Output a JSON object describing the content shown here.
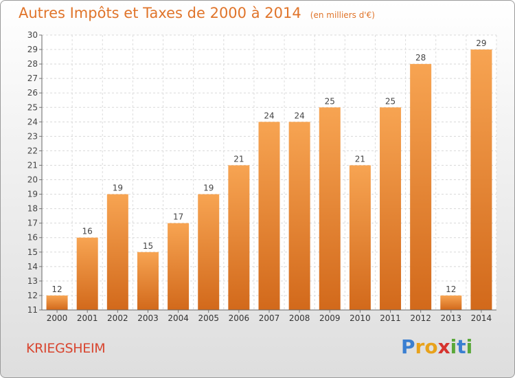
{
  "title": "Autres Impôts et Taxes de 2000 à 2014",
  "unit": "(en milliers d'€)",
  "place": "KRIEGSHEIM",
  "logo": {
    "text": "Proxiti",
    "letters": [
      {
        "ch": "P",
        "color": "#3a7fd1"
      },
      {
        "ch": "r",
        "color": "#e8a21b"
      },
      {
        "ch": "o",
        "color": "#e8a21b"
      },
      {
        "ch": "x",
        "color": "#d6332e"
      },
      {
        "ch": "i",
        "color": "#5aa83a"
      },
      {
        "ch": "t",
        "color": "#3a7fd1"
      },
      {
        "ch": "i",
        "color": "#5aa83a"
      }
    ]
  },
  "chart_data": {
    "type": "bar",
    "categories": [
      "2000",
      "2001",
      "2002",
      "2003",
      "2004",
      "2005",
      "2006",
      "2007",
      "2008",
      "2009",
      "2010",
      "2011",
      "2012",
      "2013",
      "2014"
    ],
    "values": [
      12,
      16,
      19,
      15,
      17,
      19,
      21,
      24,
      24,
      25,
      21,
      25,
      28,
      12,
      29
    ],
    "ylim": [
      11,
      30
    ],
    "yticks": [
      11,
      12,
      13,
      14,
      15,
      16,
      17,
      18,
      19,
      20,
      21,
      22,
      23,
      24,
      25,
      26,
      27,
      28,
      29,
      30
    ],
    "grid": true,
    "bar_color_top": "#f7a452",
    "bar_color_bottom": "#d2691b",
    "text_color": "#e0742a"
  }
}
